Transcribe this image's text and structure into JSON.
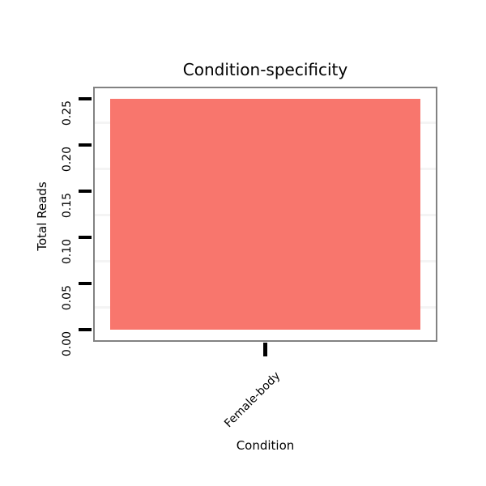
{
  "chart_data": {
    "type": "bar",
    "title": "Condition-specificity",
    "xlabel": "Condition",
    "ylabel": "Total Reads",
    "categories": [
      "Female-body"
    ],
    "values": [
      0.25
    ],
    "ylim": [
      0,
      0.26
    ],
    "yticks": [
      0,
      0.05,
      0.1,
      0.15,
      0.2,
      0.25
    ],
    "ytick_labels": [
      "0.00",
      "0.05",
      "0.10",
      "0.15",
      "0.20",
      "0.25"
    ],
    "minor_gridlines": [
      0.025,
      0.075,
      0.125,
      0.175,
      0.225
    ],
    "grid": "minor-horizontal-only",
    "legend": "none",
    "bar_color": "#F8766D",
    "panel_border_color": "#828282",
    "gridline_color": "#F4F4F4",
    "tick_color": "#000000",
    "text_color": "#000000",
    "background_color": "#FFFFFF"
  }
}
